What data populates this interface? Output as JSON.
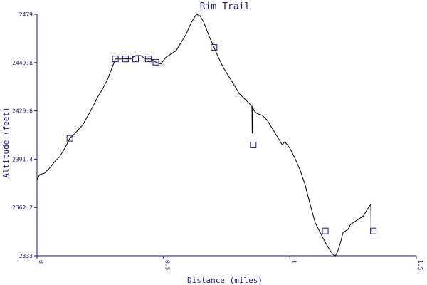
{
  "chart_data": {
    "type": "line",
    "title": "Rim Trail",
    "xlabel": "Distance (miles)",
    "ylabel": "Altitude (feet)",
    "xlim": [
      0,
      1.5
    ],
    "ylim": [
      2333,
      2479
    ],
    "x_ticks": [
      0,
      0.5,
      1,
      1.5
    ],
    "x_tick_labels": [
      "0",
      "0.5",
      "1",
      "1.5"
    ],
    "y_ticks": [
      2333,
      2362.2,
      2391.4,
      2420.6,
      2449.8,
      2479
    ],
    "y_tick_labels": [
      "2333",
      "2362.2",
      "2391.4",
      "2420.6",
      "2449.8",
      "2479"
    ],
    "grid": false,
    "series": [
      {
        "color": "#000000",
        "x": [
          0.0,
          0.01,
          0.03,
          0.05,
          0.07,
          0.09,
          0.11,
          0.13,
          0.15,
          0.18,
          0.21,
          0.24,
          0.26,
          0.28,
          0.3,
          0.31,
          0.33,
          0.35,
          0.37,
          0.39,
          0.41,
          0.43,
          0.45,
          0.47,
          0.49,
          0.51,
          0.53,
          0.55,
          0.57,
          0.59,
          0.61,
          0.63,
          0.645,
          0.66,
          0.68,
          0.7,
          0.72,
          0.74,
          0.76,
          0.78,
          0.8,
          0.82,
          0.84,
          0.85,
          0.851,
          0.853,
          0.855,
          0.857,
          0.87,
          0.89,
          0.91,
          0.93,
          0.95,
          0.97,
          0.98,
          1.0,
          1.02,
          1.04,
          1.06,
          1.08,
          1.1,
          1.12,
          1.14,
          1.16,
          1.17,
          1.18,
          1.19,
          1.2,
          1.21,
          1.22,
          1.23,
          1.24,
          1.25,
          1.27,
          1.29,
          1.31,
          1.32,
          1.321,
          1.323
        ],
        "y": [
          2379,
          2382,
          2383,
          2386,
          2390,
          2393,
          2398,
          2404,
          2407,
          2412,
          2420,
          2429,
          2434,
          2440,
          2448,
          2452,
          2452,
          2452,
          2452,
          2454,
          2454,
          2452,
          2452,
          2450,
          2449,
          2453,
          2455,
          2457,
          2462,
          2467,
          2474,
          2479,
          2478,
          2474,
          2466,
          2459,
          2452,
          2446,
          2441,
          2436,
          2431,
          2428,
          2425,
          2423,
          2407,
          2424,
          2422,
          2421,
          2419,
          2418,
          2415,
          2410,
          2405,
          2400,
          2402,
          2398,
          2392,
          2385,
          2376,
          2364,
          2353,
          2347,
          2341,
          2336,
          2334,
          2333,
          2336,
          2341,
          2347,
          2348,
          2349,
          2352,
          2353,
          2355,
          2357,
          2362,
          2364,
          2349,
          2348
        ]
      }
    ],
    "markers": {
      "shape": "square",
      "x": [
        0.13,
        0.31,
        0.35,
        0.39,
        0.44,
        0.47,
        0.7,
        0.855,
        1.14,
        1.33
      ],
      "y": [
        2404,
        2452,
        2452,
        2452,
        2452,
        2450,
        2459,
        2400,
        2348,
        2348
      ]
    }
  }
}
